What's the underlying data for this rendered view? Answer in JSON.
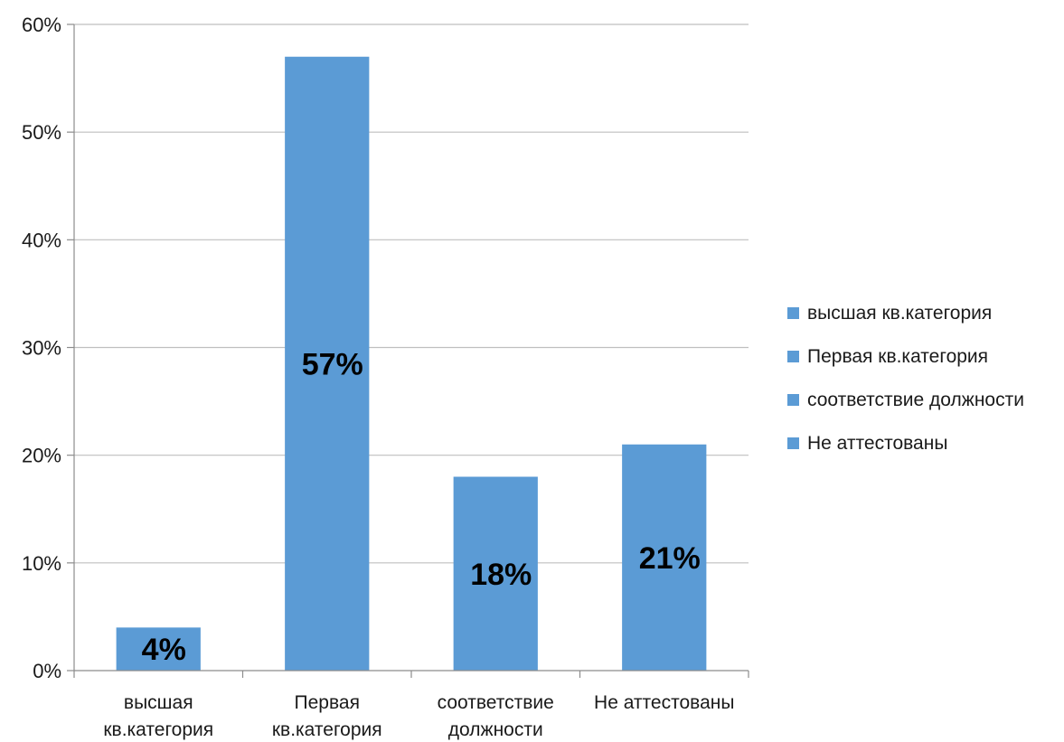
{
  "chart_data": {
    "type": "bar",
    "categories": [
      [
        "высшая",
        "кв.категория"
      ],
      [
        "Первая",
        "кв.категория"
      ],
      [
        "соответствие",
        "должности"
      ],
      [
        "Не аттестованы"
      ]
    ],
    "values": [
      4,
      57,
      18,
      21
    ],
    "data_labels": [
      "4%",
      "57%",
      "18%",
      "21%"
    ],
    "yticks": [
      "0%",
      "10%",
      "20%",
      "30%",
      "40%",
      "50%",
      "60%"
    ],
    "ylim": [
      0,
      60
    ],
    "grid": true,
    "legend": {
      "placement": "right",
      "entries": [
        "высшая кв.категория",
        "Первая кв.категория",
        "соответствие должности",
        "Не аттестованы"
      ]
    },
    "bar_color": "#5b9bd5",
    "grid_color": "#bfbfbf",
    "title": "",
    "xlabel": "",
    "ylabel": ""
  }
}
